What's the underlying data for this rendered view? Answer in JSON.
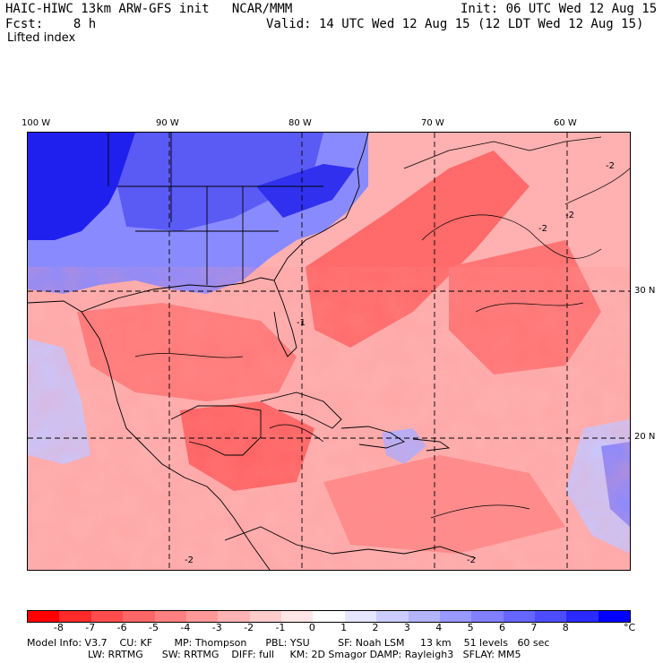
{
  "header": {
    "title": "HAIC-HIWC 13km ARW-GFS init   NCAR/MMM",
    "init": "Init: 06 UTC Wed 12 Aug 15",
    "fcst": "Fcst:    8 h",
    "valid": "Valid: 14 UTC Wed 12 Aug 15 (12 LDT Wed 12 Aug 15)",
    "field": "Lifted index"
  },
  "map": {
    "lon_labels": [
      "100 W",
      "90 W",
      "80 W",
      "70 W",
      "60 W"
    ],
    "lat_labels": [
      "30 N",
      "20 N"
    ],
    "contour_labels": [
      "-2",
      "-1",
      "-2",
      "-2",
      "-2",
      "-2"
    ]
  },
  "colorbar": {
    "ticks": [
      "-8",
      "-7",
      "-6",
      "-5",
      "-4",
      "-3",
      "-2",
      "-1",
      "0",
      "1",
      "2",
      "3",
      "4",
      "5",
      "6",
      "7",
      "8"
    ],
    "unit": "°C",
    "colors": [
      "#ff0000",
      "#ff2a2a",
      "#ff4d4d",
      "#ff6666",
      "#ff8080",
      "#ff9999",
      "#ffb3b3",
      "#ffcccc",
      "#ffe6e6",
      "#ffffff",
      "#e6e6ff",
      "#ccccff",
      "#b3b3ff",
      "#9999ff",
      "#8080ff",
      "#6666ff",
      "#4d4dff",
      "#2a2aff",
      "#0000ff"
    ]
  },
  "model_info": {
    "line1": "Model Info: V3.7    CU: KF       MP: Thompson      PBL: YSU         SF: Noah LSM     13 km    51 levels   60 sec",
    "line2": "LW: RRTMG      SW: RRTMG    DIFF: full     KM: 2D Smagor DAMP: Rayleigh3   SFLAY: MM5"
  }
}
